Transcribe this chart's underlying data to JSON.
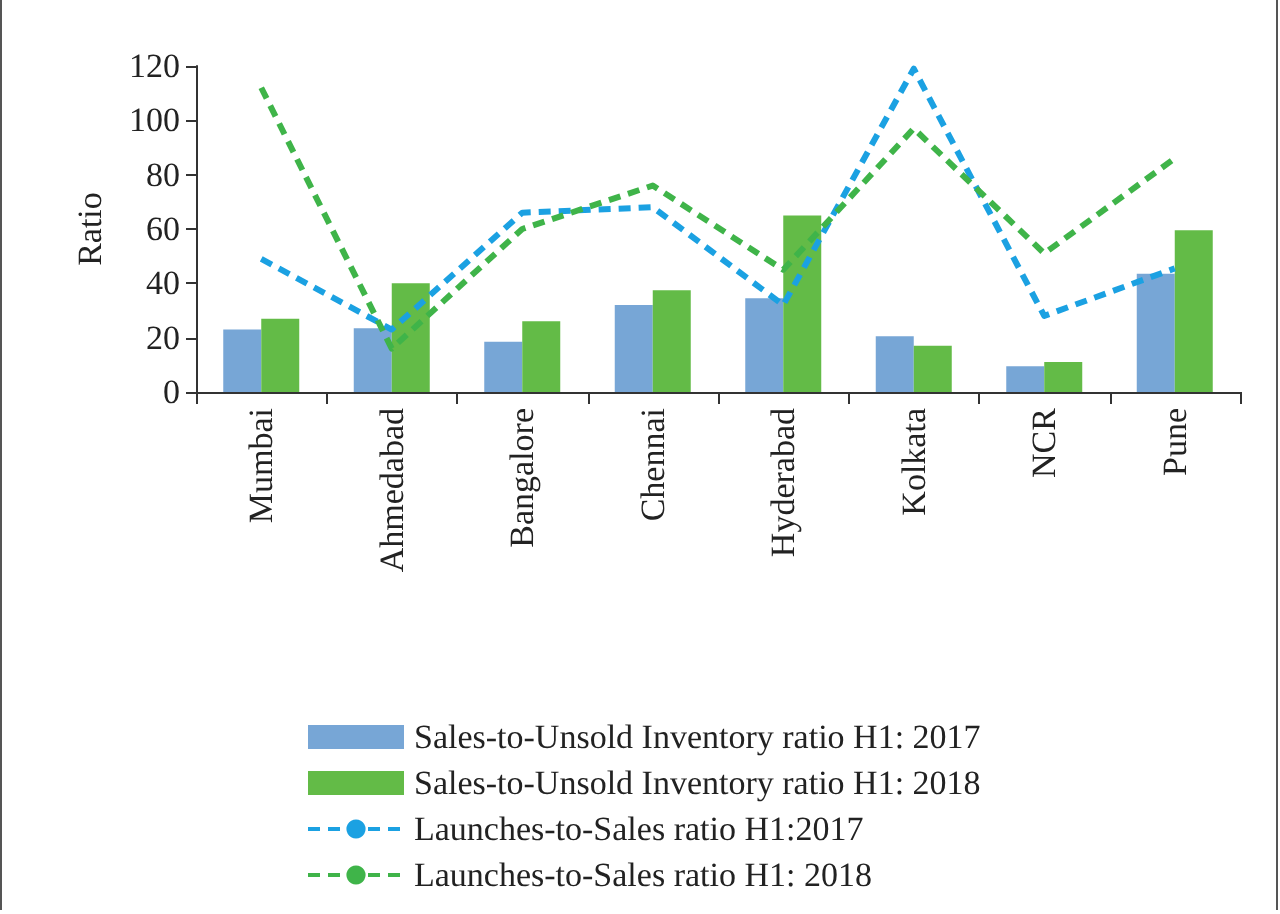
{
  "chart_data": {
    "type": "bar",
    "ylabel": "Ratio",
    "categories": [
      "Mumbai",
      "Ahmedabad",
      "Bangalore",
      "Chennai",
      "Hyderabad",
      "Kolkata",
      "NCR",
      "Pune"
    ],
    "series": [
      {
        "name": "Sales-to-Unsold Inventory ratio H1: 2017",
        "color": "#77a6d6",
        "values": [
          23,
          23.5,
          18.5,
          32,
          34.5,
          20.5,
          9.5,
          43.5
        ]
      },
      {
        "name": "Sales-to-Unsold Inventory ratio H1: 2018",
        "color": "#63bb47",
        "values": [
          27,
          40,
          26,
          37.5,
          65,
          17,
          11,
          59.5
        ]
      },
      {
        "name": "Launches-to-Sales ratio H1:2017",
        "type": "line",
        "color": "#1ba1e2",
        "line_style": "dashed",
        "values": [
          49,
          23,
          66,
          68,
          32,
          119,
          28,
          45.5
        ]
      },
      {
        "name": "Launches-to-Sales ratio H1: 2018",
        "type": "line",
        "color": "#3fb449",
        "line_style": "dashed",
        "values": [
          112,
          16,
          60,
          76,
          45,
          97,
          51,
          86
        ]
      }
    ],
    "ylim": [
      0,
      120
    ],
    "yticks": [
      0,
      20,
      40,
      60,
      80,
      100,
      120
    ],
    "grid": false,
    "legend": "bottom",
    "marker": "none"
  }
}
